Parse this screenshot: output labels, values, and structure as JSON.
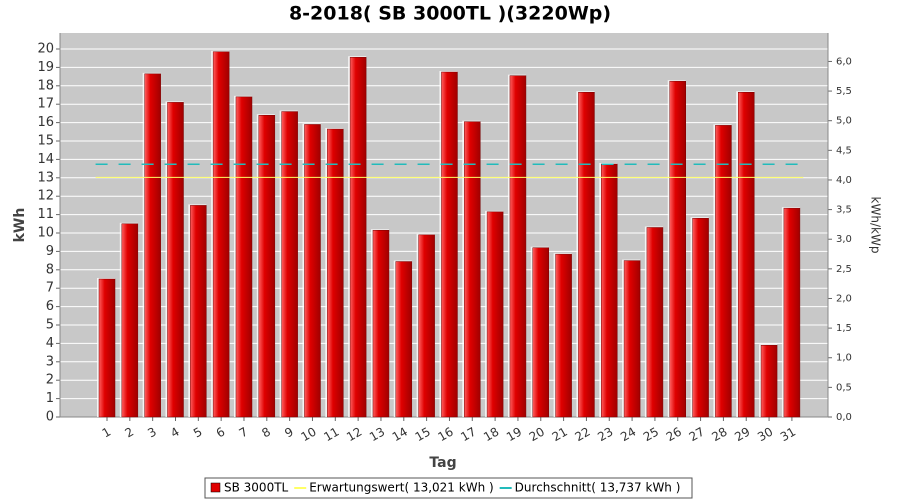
{
  "chart_data": {
    "type": "bar",
    "title": "8-2018( SB 3000TL )(3220Wp)",
    "x_label": "Tag",
    "y_label": "kWh",
    "y2_label": "kWh/kWp",
    "categories": [
      "1",
      "2",
      "3",
      "4",
      "5",
      "6",
      "7",
      "8",
      "9",
      "10",
      "11",
      "12",
      "13",
      "14",
      "15",
      "16",
      "17",
      "18",
      "19",
      "20",
      "21",
      "22",
      "23",
      "24",
      "25",
      "26",
      "27",
      "28",
      "29",
      "30",
      "31"
    ],
    "series": [
      {
        "name": "SB 3000TL",
        "color": "#e00000",
        "values": [
          7.5,
          10.5,
          18.65,
          17.1,
          11.5,
          19.85,
          17.4,
          16.4,
          16.6,
          15.9,
          15.65,
          19.55,
          10.15,
          8.45,
          9.9,
          18.75,
          16.05,
          11.15,
          18.55,
          9.2,
          8.85,
          17.65,
          13.75,
          8.5,
          10.3,
          18.25,
          10.8,
          15.85,
          17.65,
          3.9,
          11.35
        ]
      }
    ],
    "reference_lines": [
      {
        "name": "Erwartungswert( 13,021 kWh )",
        "color": "#ffff66",
        "value": 13.021,
        "dashed": false
      },
      {
        "name": "Durchschnitt( 13,737 kWh )",
        "color": "#22bbbb",
        "value": 13.737,
        "dashed": true
      }
    ],
    "ylim": [
      0,
      20.87
    ],
    "yticks": [
      0,
      1,
      2,
      3,
      4,
      5,
      6,
      7,
      8,
      9,
      10,
      11,
      12,
      13,
      14,
      15,
      16,
      17,
      18,
      19,
      20
    ],
    "y2lim": [
      0,
      6.48
    ],
    "y2ticks": [
      {
        "value": 0,
        "label": "0,0"
      },
      {
        "value": 0.5,
        "label": "0,5"
      },
      {
        "value": 1,
        "label": "1,0"
      },
      {
        "value": 1.5,
        "label": "1,5"
      },
      {
        "value": 2,
        "label": "2,0"
      },
      {
        "value": 2.5,
        "label": "2,5"
      },
      {
        "value": 3,
        "label": "3,0"
      },
      {
        "value": 3.5,
        "label": "3,5"
      },
      {
        "value": 4,
        "label": "4,0"
      },
      {
        "value": 4.5,
        "label": "4,5"
      },
      {
        "value": 5,
        "label": "5,0"
      },
      {
        "value": 5.5,
        "label": "5,5"
      },
      {
        "value": 6,
        "label": "6,0"
      }
    ],
    "grid": true
  }
}
